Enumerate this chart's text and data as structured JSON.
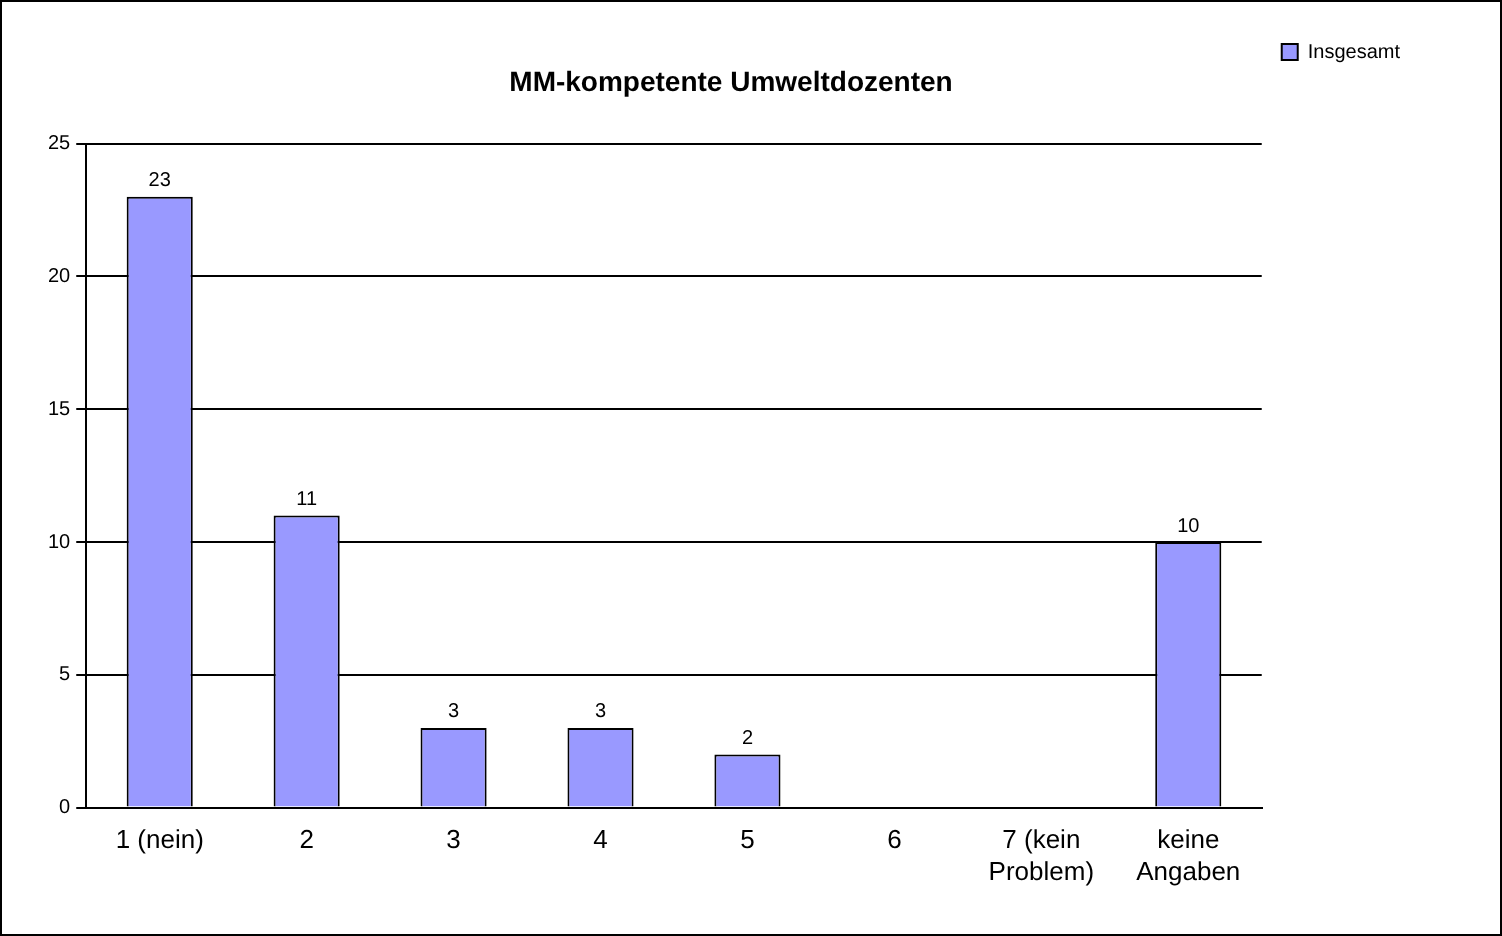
{
  "chart_data": {
    "type": "bar",
    "title": "MM-kompetente Umweltdozenten",
    "categories": [
      "1 (nein)",
      "2",
      "3",
      "4",
      "5",
      "6",
      "7 (kein Problem)",
      "keine Angaben"
    ],
    "series": [
      {
        "name": "Insgesamt",
        "color": "#9999ff",
        "values": [
          23,
          11,
          3,
          3,
          2,
          0,
          0,
          10
        ],
        "value_labels": [
          "23",
          "11",
          "3",
          "3",
          "2",
          null,
          null,
          "10"
        ]
      }
    ],
    "ylim": [
      0,
      25
    ],
    "yticks": [
      0,
      5,
      10,
      15,
      20,
      25
    ],
    "grid": "y",
    "legend": "right"
  }
}
